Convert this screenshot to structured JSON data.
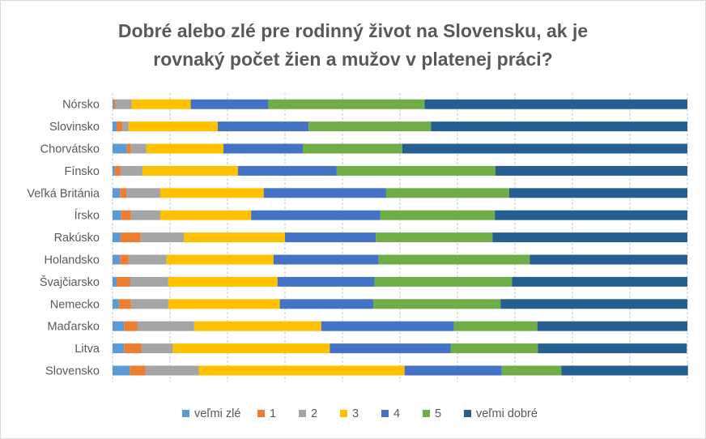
{
  "chart_data": {
    "type": "bar",
    "orientation": "horizontal",
    "stacked": "percent",
    "title_lines": [
      "Dobré alebo zlé pre rodinný život na Slovensku, ak je",
      "rovnaký počet žien a mužov v platenej práci?"
    ],
    "xlabel": "",
    "ylabel": "",
    "xlim": [
      0,
      100
    ],
    "grid": true,
    "legend_position": "bottom",
    "categories": [
      "Nórsko",
      "Slovinsko",
      "Chorvátsko",
      "Fínsko",
      "Veľká Británia",
      "Írsko",
      "Rakúsko",
      "Holandsko",
      "Švajčiarsko",
      "Nemecko",
      "Maďarsko",
      "Litva",
      "Slovensko"
    ],
    "series": [
      {
        "name": "veľmi zlé",
        "color": "#5B9BD5",
        "values": [
          0.2,
          0.7,
          2.5,
          0.4,
          1.3,
          1.5,
          1.4,
          1.3,
          0.7,
          1.1,
          2.0,
          2.0,
          3.0
        ]
      },
      {
        "name": "1",
        "color": "#ED7D31",
        "values": [
          0.3,
          1.0,
          0.7,
          1.0,
          1.1,
          1.7,
          3.5,
          1.5,
          2.4,
          2.1,
          2.3,
          3.0,
          2.7
        ]
      },
      {
        "name": "2",
        "color": "#A5A5A5",
        "values": [
          2.8,
          1.1,
          2.7,
          3.8,
          5.9,
          5.1,
          7.5,
          6.6,
          6.6,
          6.5,
          9.9,
          5.5,
          9.3
        ]
      },
      {
        "name": "3",
        "color": "#FFC000",
        "values": [
          10.3,
          15.5,
          13.4,
          16.6,
          18.0,
          15.8,
          17.6,
          18.6,
          19.0,
          19.4,
          22.1,
          27.3,
          35.8
        ]
      },
      {
        "name": "4",
        "color": "#4472C4",
        "values": [
          13.5,
          15.8,
          13.8,
          17.2,
          21.3,
          22.5,
          15.8,
          18.3,
          16.9,
          16.3,
          23.1,
          21.0,
          16.9
        ]
      },
      {
        "name": "5",
        "color": "#70AD47",
        "values": [
          27.2,
          21.3,
          17.3,
          27.6,
          21.4,
          19.9,
          20.3,
          26.3,
          23.9,
          22.1,
          14.5,
          15.2,
          10.4
        ]
      },
      {
        "name": "veľmi dobré",
        "color": "#255E91",
        "values": [
          45.7,
          44.6,
          49.6,
          33.4,
          31.0,
          33.5,
          33.9,
          27.4,
          30.5,
          32.5,
          26.1,
          25.9,
          22.0
        ]
      }
    ]
  }
}
